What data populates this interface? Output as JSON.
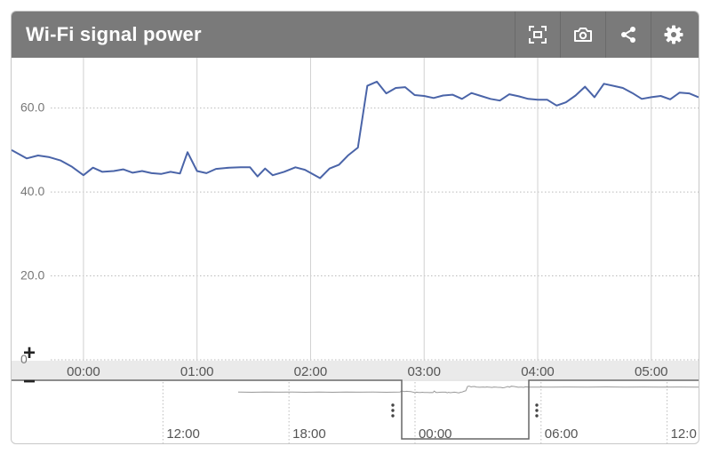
{
  "header": {
    "title": "Wi-Fi signal power",
    "buttons": [
      {
        "name": "fullscreen-button",
        "icon": "fullscreen-icon"
      },
      {
        "name": "snapshot-button",
        "icon": "camera-icon"
      },
      {
        "name": "share-button",
        "icon": "share-icon"
      },
      {
        "name": "settings-button",
        "icon": "gear-icon"
      }
    ]
  },
  "colors": {
    "header_bg": "#7a7a7a",
    "line": "#4a64a8",
    "grid": "#bbbbbb",
    "axis_band": "#eaeaea",
    "navigator_line": "#999999"
  },
  "chart_data": {
    "type": "line",
    "title": "Wi-Fi signal power",
    "xlabel": "",
    "ylabel": "",
    "ylim": [
      0,
      72
    ],
    "yticks": [
      0,
      20,
      40,
      60
    ],
    "ytick_labels": [
      "0",
      "20.0",
      "40.0",
      "60.0"
    ],
    "xlim": [
      "-00:38",
      "05:25"
    ],
    "xticks": [
      "00:00",
      "01:00",
      "02:00",
      "03:00",
      "04:00",
      "05:00"
    ],
    "grid": true,
    "legend": "none",
    "series": [
      {
        "values": [
          {
            "t": "-00:38",
            "v": 50.0
          },
          {
            "t": "-00:30",
            "v": 48.0
          },
          {
            "t": "-00:24",
            "v": 48.7
          },
          {
            "t": "-00:18",
            "v": 48.3
          },
          {
            "t": "-00:12",
            "v": 47.5
          },
          {
            "t": "-00:06",
            "v": 46.0
          },
          {
            "t": "00:00",
            "v": 44.0
          },
          {
            "t": "00:05",
            "v": 45.8
          },
          {
            "t": "00:10",
            "v": 44.8
          },
          {
            "t": "00:16",
            "v": 45.0
          },
          {
            "t": "00:21",
            "v": 45.4
          },
          {
            "t": "00:26",
            "v": 44.6
          },
          {
            "t": "00:31",
            "v": 45.0
          },
          {
            "t": "00:36",
            "v": 44.5
          },
          {
            "t": "00:41",
            "v": 44.3
          },
          {
            "t": "00:46",
            "v": 44.8
          },
          {
            "t": "00:51",
            "v": 44.4
          },
          {
            "t": "00:55",
            "v": 49.5
          },
          {
            "t": "01:00",
            "v": 45.0
          },
          {
            "t": "01:05",
            "v": 44.5
          },
          {
            "t": "01:10",
            "v": 45.5
          },
          {
            "t": "01:17",
            "v": 45.8
          },
          {
            "t": "01:23",
            "v": 45.9
          },
          {
            "t": "01:28",
            "v": 45.9
          },
          {
            "t": "01:32",
            "v": 43.7
          },
          {
            "t": "01:36",
            "v": 45.6
          },
          {
            "t": "01:40",
            "v": 44.0
          },
          {
            "t": "01:46",
            "v": 44.8
          },
          {
            "t": "01:52",
            "v": 45.9
          },
          {
            "t": "01:57",
            "v": 45.3
          },
          {
            "t": "02:05",
            "v": 43.3
          },
          {
            "t": "02:10",
            "v": 45.6
          },
          {
            "t": "02:15",
            "v": 46.5
          },
          {
            "t": "02:20",
            "v": 48.8
          },
          {
            "t": "02:25",
            "v": 50.6
          },
          {
            "t": "02:30",
            "v": 65.3
          },
          {
            "t": "02:35",
            "v": 66.3
          },
          {
            "t": "02:40",
            "v": 63.5
          },
          {
            "t": "02:45",
            "v": 64.8
          },
          {
            "t": "02:50",
            "v": 65.0
          },
          {
            "t": "02:55",
            "v": 63.1
          },
          {
            "t": "03:00",
            "v": 62.9
          },
          {
            "t": "03:05",
            "v": 62.4
          },
          {
            "t": "03:10",
            "v": 63.0
          },
          {
            "t": "03:15",
            "v": 63.2
          },
          {
            "t": "03:20",
            "v": 62.2
          },
          {
            "t": "03:25",
            "v": 63.6
          },
          {
            "t": "03:30",
            "v": 62.9
          },
          {
            "t": "03:35",
            "v": 62.2
          },
          {
            "t": "03:40",
            "v": 61.8
          },
          {
            "t": "03:45",
            "v": 63.3
          },
          {
            "t": "03:50",
            "v": 62.8
          },
          {
            "t": "03:55",
            "v": 62.2
          },
          {
            "t": "04:00",
            "v": 62.0
          },
          {
            "t": "04:05",
            "v": 62.0
          },
          {
            "t": "04:10",
            "v": 60.6
          },
          {
            "t": "04:15",
            "v": 61.4
          },
          {
            "t": "04:20",
            "v": 63.0
          },
          {
            "t": "04:25",
            "v": 65.1
          },
          {
            "t": "04:30",
            "v": 62.6
          },
          {
            "t": "04:35",
            "v": 65.8
          },
          {
            "t": "04:40",
            "v": 65.3
          },
          {
            "t": "04:45",
            "v": 64.8
          },
          {
            "t": "04:50",
            "v": 63.6
          },
          {
            "t": "04:55",
            "v": 62.2
          },
          {
            "t": "05:00",
            "v": 62.6
          },
          {
            "t": "05:05",
            "v": 62.9
          },
          {
            "t": "05:10",
            "v": 62.1
          },
          {
            "t": "05:15",
            "v": 63.7
          },
          {
            "t": "05:20",
            "v": 63.5
          },
          {
            "t": "05:25",
            "v": 62.6
          }
        ]
      }
    ],
    "navigator": {
      "xticks": [
        "12:00",
        "18:00",
        "00:00",
        "06:00",
        "12:0"
      ],
      "selection": [
        "-00:38",
        "05:25"
      ],
      "zoom_in": "+",
      "zoom_out": "−"
    }
  }
}
